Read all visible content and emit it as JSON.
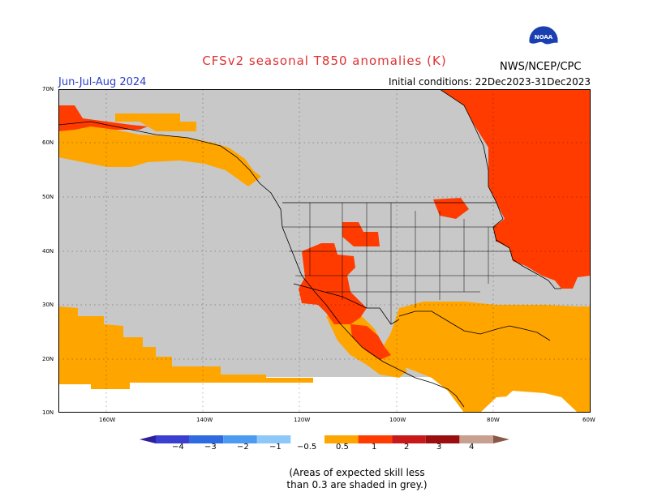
{
  "header": {
    "title": "CFSv2 seasonal T850 anomalies (K)",
    "period": "Jun-Jul-Aug 2024",
    "initial_conditions": "Initial conditions: 22Dec2023-31Dec2023",
    "agency": "NWS/NCEP/CPC",
    "logo_text": "NOAA"
  },
  "map": {
    "lat_labels": [
      "70N",
      "60N",
      "50N",
      "40N",
      "30N",
      "20N",
      "10N"
    ],
    "lon_labels": [
      "160W",
      "140W",
      "120W",
      "100W",
      "80W",
      "60W"
    ],
    "colors": {
      "skill_grey": "#c8c8c8",
      "ocean_white": "#ffffff",
      "anom_0_5_to_1": "#ffa500",
      "anom_1_to_2": "#ff3b00"
    }
  },
  "colorbar": {
    "labels": [
      "−4",
      "−3",
      "−2",
      "−1",
      "−0.5",
      "0.5",
      "1",
      "2",
      "3",
      "4"
    ],
    "colors": [
      "#2d1f9e",
      "#3b3fd0",
      "#2f6ae0",
      "#4c9bf0",
      "#8ec8f8",
      "#ffffff",
      "#ffa500",
      "#ff3b00",
      "#c8181a",
      "#9a0e10",
      "#c8a090",
      "#8a5848"
    ]
  },
  "note": {
    "line1": "(Areas of expected skill less",
    "line2": "than 0.3 are shaded in grey.)"
  }
}
